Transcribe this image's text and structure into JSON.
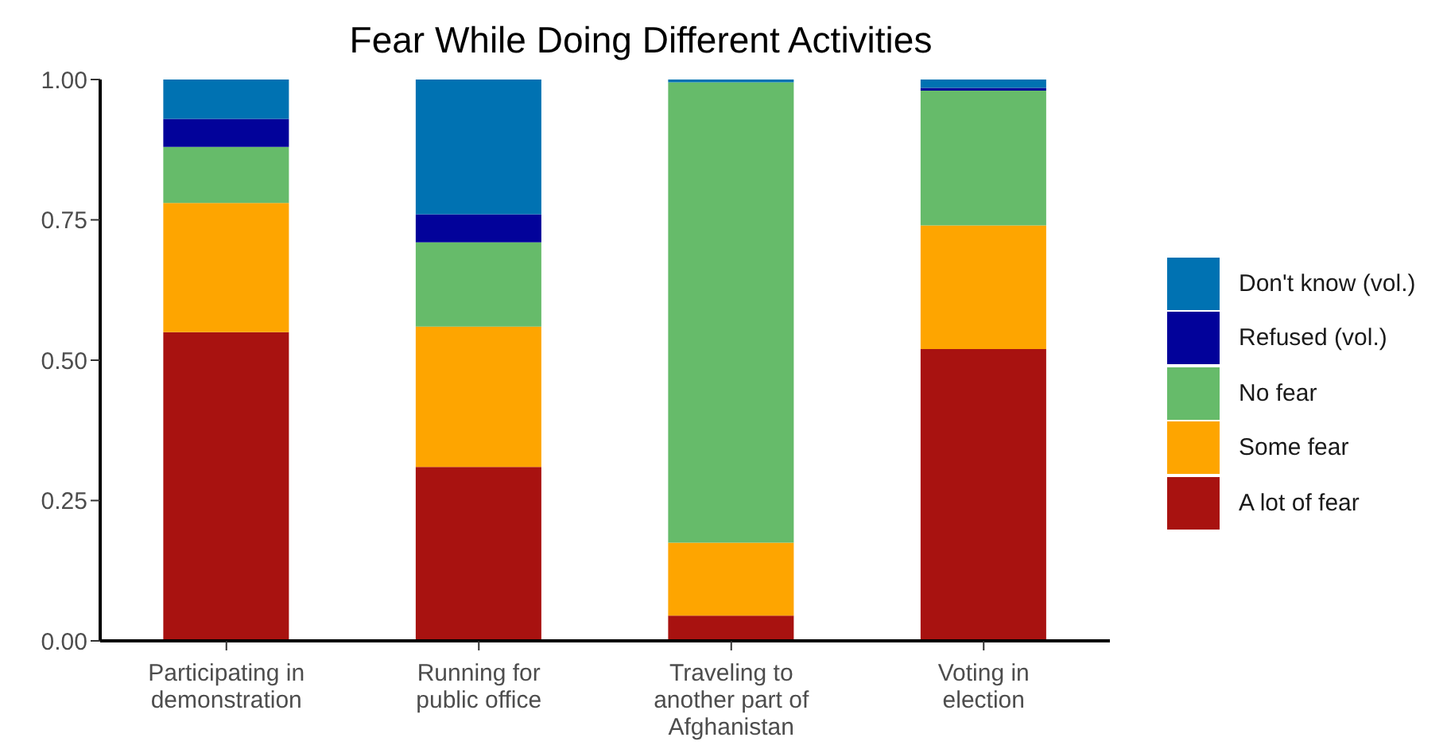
{
  "chart_data": {
    "type": "bar",
    "title": "Fear While Doing Different Activities",
    "categories": [
      "Participating in demonstration",
      "Running for public office",
      "Traveling to another part of Afghanistan",
      "Voting in election"
    ],
    "stacked": true,
    "legend": "right",
    "grid": false,
    "ylim": [
      0,
      1.0
    ],
    "yticks": [
      {
        "value": 0,
        "label": "0.00"
      },
      {
        "value": 0.25,
        "label": "0.25"
      },
      {
        "value": 0.5,
        "label": "0.50"
      },
      {
        "value": 0.75,
        "label": "0.75"
      },
      {
        "value": 1.0,
        "label": "1.00"
      }
    ],
    "series": [
      {
        "name": "A lot of fear",
        "color": "#a81210",
        "values": [
          0.55,
          0.31,
          0.045,
          0.52
        ]
      },
      {
        "name": "Some fear",
        "color": "#fea500",
        "values": [
          0.23,
          0.25,
          0.13,
          0.22
        ]
      },
      {
        "name": "No fear",
        "color": "#66bb6a",
        "values": [
          0.1,
          0.15,
          0.82,
          0.24
        ]
      },
      {
        "name": "Refused (vol.)",
        "color": "#02029a",
        "values": [
          0.05,
          0.05,
          0,
          0.005
        ]
      },
      {
        "name": "Don't know (vol.)",
        "color": "#0072b2",
        "values": [
          0.07,
          0.24,
          0.005,
          0.015
        ]
      }
    ]
  }
}
